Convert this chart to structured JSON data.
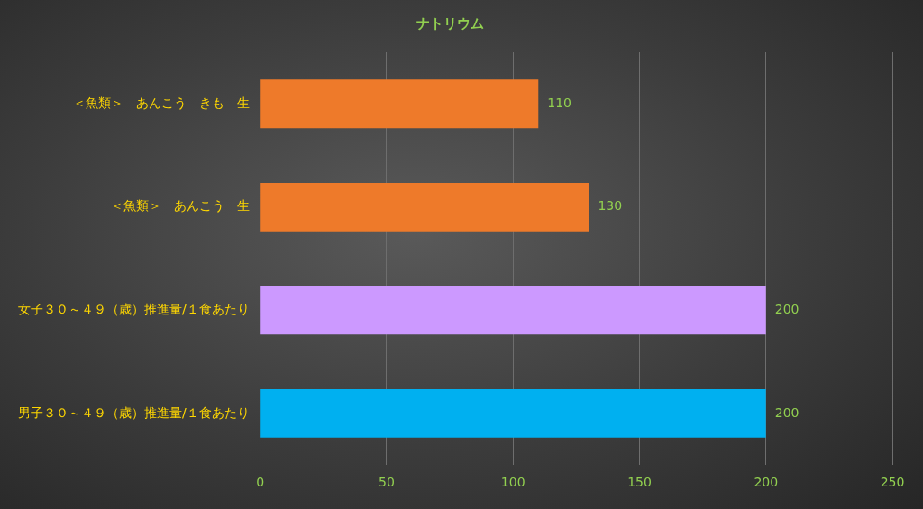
{
  "chart_data": {
    "type": "bar",
    "orientation": "horizontal",
    "title": "ナトリウム",
    "categories": [
      "＜魚類＞　あんこう　きも　生",
      "＜魚類＞　あんこう　生",
      "女子３０～４９（歳）推進量/１食あたり",
      "男子３０～４９（歳）推進量/１食あたり"
    ],
    "values": [
      110,
      130,
      200,
      200
    ],
    "colors": [
      "#ee7a2a",
      "#ee7a2a",
      "#cc99ff",
      "#00b0f0"
    ],
    "xlim": [
      0,
      250
    ],
    "xticks": [
      0,
      50,
      100,
      150,
      200,
      250
    ],
    "grid": "x",
    "legend": false,
    "data_labels": true
  }
}
